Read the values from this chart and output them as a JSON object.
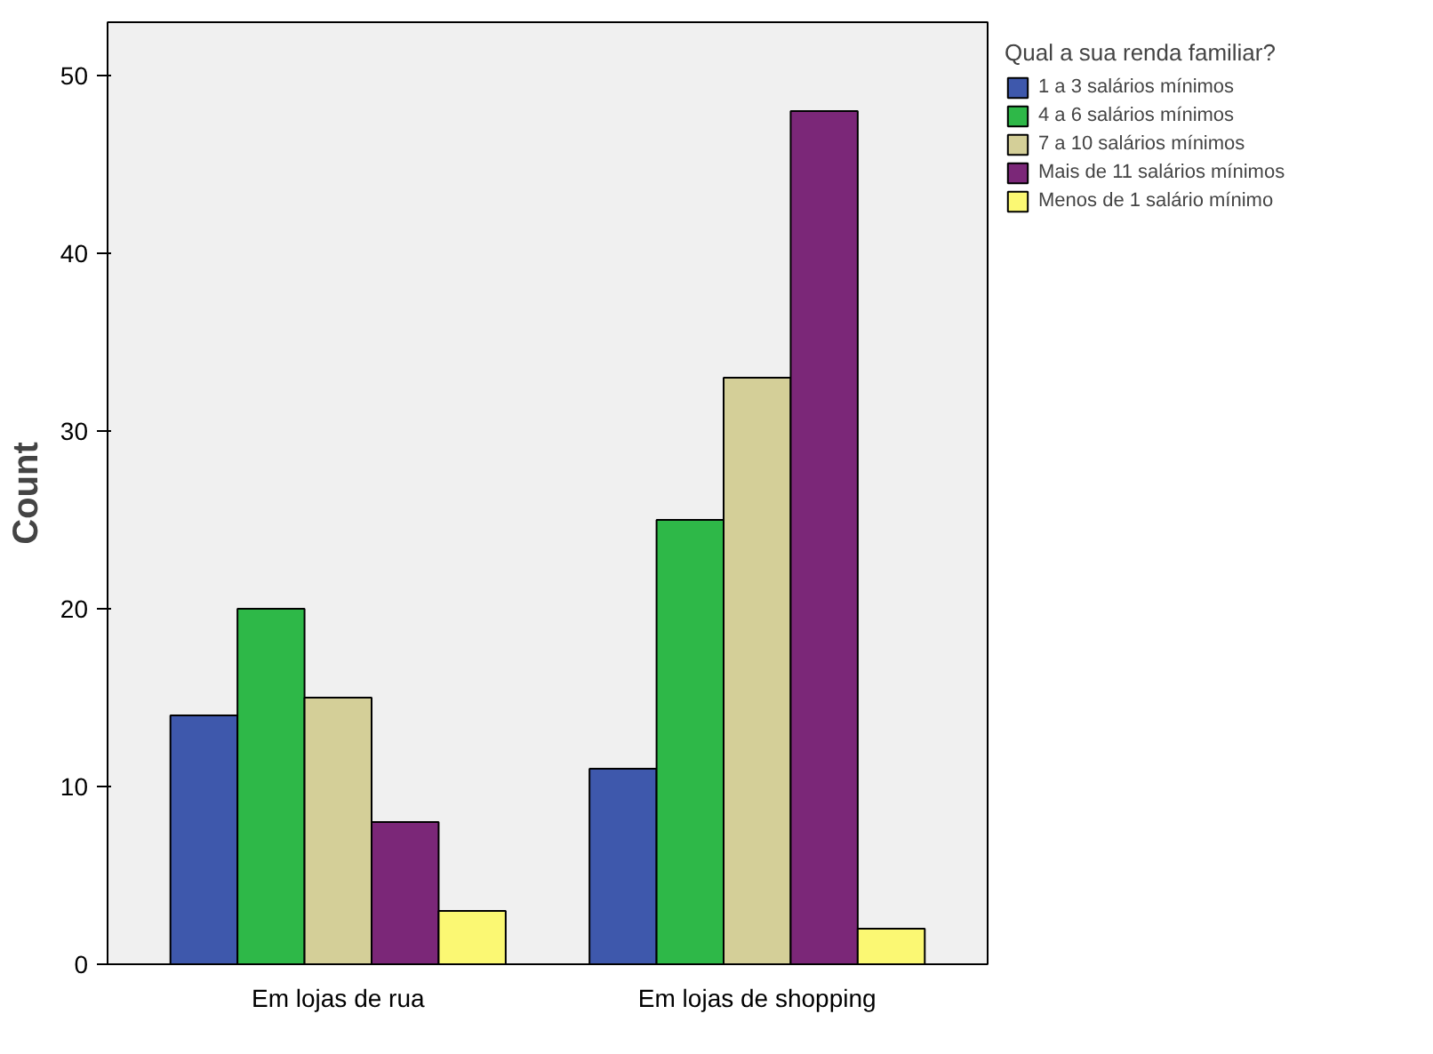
{
  "chart_data": {
    "type": "bar",
    "ylabel": "Count",
    "legend_title": "Qual a sua renda familiar?",
    "categories": [
      "Em lojas de rua",
      "Em lojas de shopping"
    ],
    "series": [
      {
        "name": "1 a 3 salários mínimos",
        "color": "#3e58ac",
        "values": [
          14,
          11
        ]
      },
      {
        "name": "4 a 6 salários mínimos",
        "color": "#2eb848",
        "values": [
          20,
          25
        ]
      },
      {
        "name": "7 a 10 salários mínimos",
        "color": "#d4cf98",
        "values": [
          15,
          33
        ]
      },
      {
        "name": "Mais de 11 salários mínimos",
        "color": "#7b2778",
        "values": [
          8,
          48
        ]
      },
      {
        "name": "Menos de 1 salário mínimo",
        "color": "#fbf873",
        "values": [
          3,
          2
        ]
      }
    ],
    "ylim": [
      0,
      53
    ],
    "yticks": [
      0,
      10,
      20,
      30,
      40,
      50
    ],
    "grid": false,
    "legend": "right"
  }
}
